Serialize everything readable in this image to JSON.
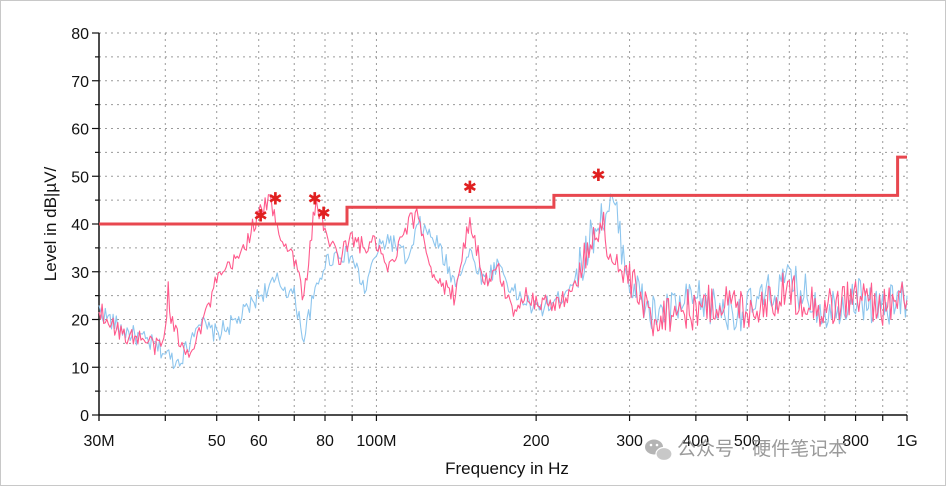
{
  "chart_data": {
    "type": "line",
    "title": "",
    "xlabel": "Frequency in Hz",
    "ylabel": "Level in dBµV/",
    "ylabel_display": "Level in dB|µV/",
    "x_scale": "log",
    "xlim": [
      30000000,
      1000000000
    ],
    "ylim": [
      0,
      80
    ],
    "grid": true,
    "x_ticks": [
      {
        "value": 30000000,
        "label": "30M"
      },
      {
        "value": 50000000,
        "label": "50"
      },
      {
        "value": 60000000,
        "label": "60"
      },
      {
        "value": 80000000,
        "label": "80"
      },
      {
        "value": 100000000,
        "label": "100M"
      },
      {
        "value": 200000000,
        "label": "200"
      },
      {
        "value": 300000000,
        "label": "300"
      },
      {
        "value": 400000000,
        "label": "400"
      },
      {
        "value": 500000000,
        "label": "500"
      },
      {
        "value": 800000000,
        "label": "800"
      },
      {
        "value": 1000000000,
        "label": "1G"
      }
    ],
    "y_ticks": [
      0,
      10,
      20,
      30,
      40,
      50,
      60,
      70,
      80
    ],
    "limit_line": {
      "color": "#e8474f",
      "steps": [
        {
          "x": 30000000,
          "y": 40
        },
        {
          "x": 88000000,
          "y": 40
        },
        {
          "x": 88000000,
          "y": 43.5
        },
        {
          "x": 216000000,
          "y": 43.5
        },
        {
          "x": 216000000,
          "y": 46
        },
        {
          "x": 960000000,
          "y": 46
        },
        {
          "x": 960000000,
          "y": 54
        },
        {
          "x": 1000000000,
          "y": 54
        }
      ]
    },
    "series": [
      {
        "key": "pink",
        "color": "#ff5a8c",
        "x": [
          30000000,
          33000000,
          36000000,
          39000000,
          40000000,
          40500000,
          41000000,
          43000000,
          44000000,
          46000000,
          48000000,
          50000000,
          55000000,
          60000000,
          63000000,
          65000000,
          67000000,
          70000000,
          73000000,
          75000000,
          77000000,
          80000000,
          85000000,
          90000000,
          95000000,
          100000000,
          105000000,
          108000000,
          110000000,
          115000000,
          120000000,
          125000000,
          130000000,
          140000000,
          150000000,
          160000000,
          170000000,
          180000000,
          190000000,
          200000000,
          220000000,
          240000000,
          260000000,
          270000000,
          280000000,
          300000000,
          330000000,
          360000000,
          400000000,
          450000000,
          500000000,
          600000000,
          700000000,
          800000000,
          900000000,
          1000000000
        ],
        "y": [
          22,
          17,
          16,
          14,
          17,
          27,
          20,
          14,
          13,
          17,
          22,
          28,
          33,
          42,
          45,
          40,
          36,
          33,
          24,
          36,
          45,
          38,
          33,
          37,
          35,
          36,
          30,
          32,
          35,
          40,
          42,
          33,
          28,
          25,
          41,
          28,
          30,
          22,
          25,
          24,
          23,
          28,
          40,
          38,
          32,
          28,
          20,
          22,
          22,
          24,
          22,
          26,
          22,
          25,
          23,
          24
        ]
      },
      {
        "key": "blue",
        "color": "#8ec6ee",
        "x": [
          30000000,
          33000000,
          36000000,
          39000000,
          42000000,
          44000000,
          46000000,
          48000000,
          50000000,
          55000000,
          60000000,
          65000000,
          70000000,
          73000000,
          75000000,
          80000000,
          85000000,
          90000000,
          95000000,
          100000000,
          105000000,
          110000000,
          115000000,
          120000000,
          130000000,
          140000000,
          150000000,
          160000000,
          170000000,
          180000000,
          200000000,
          220000000,
          240000000,
          260000000,
          280000000,
          300000000,
          330000000,
          360000000,
          400000000,
          450000000,
          500000000,
          600000000,
          700000000,
          800000000,
          900000000,
          1000000000
        ],
        "y": [
          22,
          18,
          16,
          14,
          11,
          14,
          20,
          18,
          17,
          20,
          25,
          28,
          25,
          16,
          22,
          32,
          34,
          33,
          26,
          34,
          37,
          35,
          32,
          40,
          36,
          28,
          34,
          28,
          32,
          26,
          22,
          24,
          30,
          40,
          44,
          28,
          21,
          22,
          24,
          22,
          22,
          28,
          22,
          25,
          22,
          25
        ]
      }
    ],
    "peaks": [
      {
        "x": 60500000,
        "y": 42
      },
      {
        "x": 64500000,
        "y": 45.5
      },
      {
        "x": 76500000,
        "y": 45.5
      },
      {
        "x": 79500000,
        "y": 42.5
      },
      {
        "x": 150000000,
        "y": 48
      },
      {
        "x": 262000000,
        "y": 50.5
      }
    ],
    "peak_color": "#e02020"
  },
  "watermark": {
    "text": "公众号 · 硬件笔记本"
  }
}
